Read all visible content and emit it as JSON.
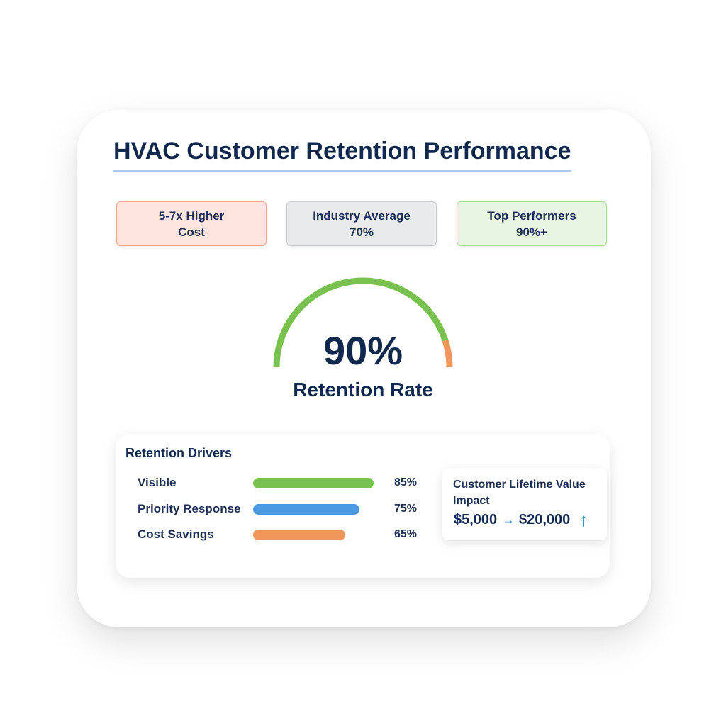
{
  "title": "HVAC Customer Retention Performance",
  "stats": [
    {
      "lines": [
        "5-7x Higher",
        "Cost"
      ]
    },
    {
      "lines": [
        "Industry Average",
        "70%"
      ]
    },
    {
      "lines": [
        "Top Performers",
        "90%+"
      ]
    }
  ],
  "gauge": {
    "value": 90,
    "value_label": "90%",
    "caption": "Retention Rate"
  },
  "drivers": {
    "title": "Retention Drivers",
    "items": [
      {
        "label": "Visible",
        "value": 85,
        "value_label": "85%",
        "color": "#79c24f"
      },
      {
        "label": "Priority Response",
        "value": 75,
        "value_label": "75%",
        "color": "#4a9ae3"
      },
      {
        "label": "Cost Savings",
        "value": 65,
        "value_label": "65%",
        "color": "#f0965a"
      }
    ]
  },
  "clv": {
    "title": "Customer Lifetime Value Impact",
    "from": "$5,000",
    "to": "$20,000"
  }
}
